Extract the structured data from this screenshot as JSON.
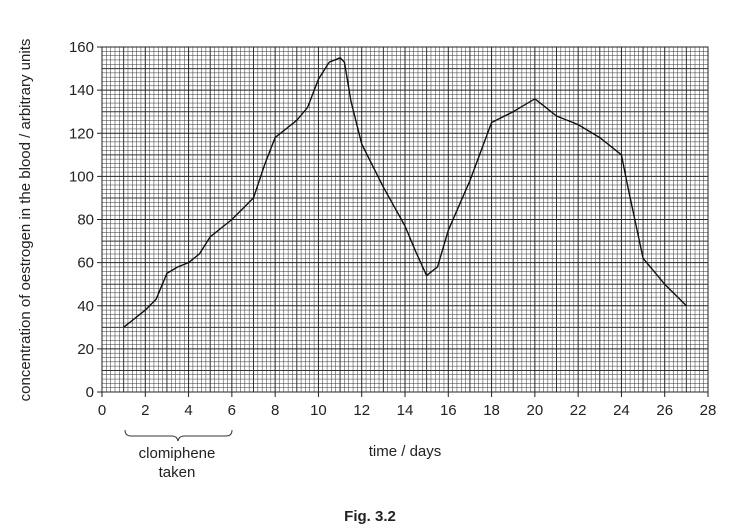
{
  "chart_data": {
    "type": "line",
    "y_label": "concentration of oestrogen in the blood / arbitrary units",
    "x_label": "time / days",
    "caption": "Fig. 3.2",
    "annotation": "clomiphene taken",
    "color": "#111111",
    "grid": true,
    "x": [
      1,
      2,
      2.5,
      3,
      3.5,
      4,
      4.5,
      5,
      6,
      7,
      7.5,
      8,
      9,
      9.5,
      10,
      10.5,
      11,
      11.2,
      11.5,
      12,
      13,
      14,
      14.5,
      15,
      15.5,
      16,
      17,
      18,
      19,
      20,
      21,
      22,
      23,
      24,
      24.3,
      25,
      26,
      27
    ],
    "values": [
      30,
      38,
      43,
      55,
      58,
      60,
      64,
      72,
      80,
      90,
      105,
      118,
      126,
      132,
      145,
      153,
      155,
      153,
      135,
      115,
      95,
      77,
      65,
      54,
      58,
      75,
      98,
      125,
      130,
      136,
      128,
      124,
      118,
      110,
      95,
      62,
      50,
      40
    ],
    "xlim": [
      0,
      28
    ],
    "xticks": [
      0,
      2,
      4,
      6,
      8,
      10,
      12,
      14,
      16,
      18,
      20,
      22,
      24,
      26,
      28
    ],
    "ylim": [
      0,
      160
    ],
    "yticks": [
      0,
      20,
      40,
      60,
      80,
      100,
      120,
      140,
      160
    ]
  }
}
